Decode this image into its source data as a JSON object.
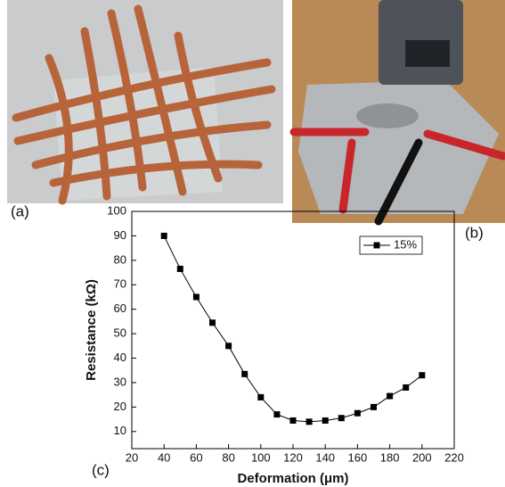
{
  "panels": {
    "a": "(a)",
    "b": "(b)",
    "c": "(c)"
  },
  "chart_data": {
    "type": "line",
    "x_label": "Deformation (μm)",
    "y_label": "Resistance (kΩ)",
    "x": [
      40,
      50,
      60,
      70,
      80,
      90,
      100,
      110,
      120,
      130,
      140,
      150,
      160,
      170,
      180,
      190,
      200
    ],
    "series": [
      {
        "name": "15%",
        "color": "#000000",
        "values": [
          90,
          76.5,
          65,
          54.5,
          45,
          33.5,
          24,
          17,
          14.5,
          14,
          14.5,
          15.5,
          17.5,
          20,
          24.5,
          28,
          33
        ]
      }
    ],
    "xlim": [
      20,
      220
    ],
    "xticks": [
      20,
      40,
      60,
      80,
      100,
      120,
      140,
      160,
      180,
      200,
      220
    ],
    "ylim": [
      3,
      100
    ],
    "yticks": [
      10,
      20,
      30,
      40,
      50,
      60,
      70,
      80,
      90,
      100
    ],
    "legend": "upper-right"
  }
}
